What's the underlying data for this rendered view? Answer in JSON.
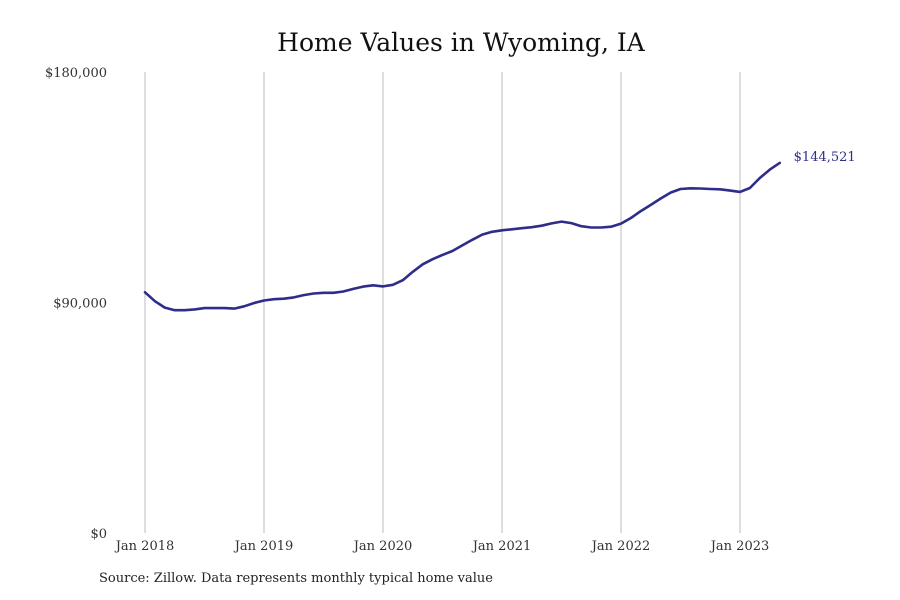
{
  "chart_data": {
    "type": "line",
    "title": "Home Values in Wyoming, IA",
    "xlabel": "",
    "ylabel": "",
    "ylim": [
      0,
      180000
    ],
    "y_ticks": [
      {
        "value": 0,
        "label": "$0"
      },
      {
        "value": 90000,
        "label": "$90,000"
      },
      {
        "value": 180000,
        "label": "$180,000"
      }
    ],
    "x_ticks": [
      "Jan 2018",
      "Jan 2019",
      "Jan 2020",
      "Jan 2021",
      "Jan 2022",
      "Jan 2023"
    ],
    "grid": "vertical",
    "line_color": "#2e2d8a",
    "end_label": "$144,521",
    "series": [
      {
        "x": [
          "2018-01",
          "2018-02",
          "2018-03",
          "2018-04",
          "2018-05",
          "2018-06",
          "2018-07",
          "2018-08",
          "2018-09",
          "2018-10",
          "2018-11",
          "2018-12",
          "2019-01",
          "2019-02",
          "2019-03",
          "2019-04",
          "2019-05",
          "2019-06",
          "2019-07",
          "2019-08",
          "2019-09",
          "2019-10",
          "2019-11",
          "2019-12",
          "2020-01",
          "2020-02",
          "2020-03",
          "2020-04",
          "2020-05",
          "2020-06",
          "2020-07",
          "2020-08",
          "2020-09",
          "2020-10",
          "2020-11",
          "2020-12",
          "2021-01",
          "2021-02",
          "2021-03",
          "2021-04",
          "2021-05",
          "2021-06",
          "2021-07",
          "2021-08",
          "2021-09",
          "2021-10",
          "2021-11",
          "2021-12",
          "2022-01",
          "2022-02",
          "2022-03",
          "2022-04",
          "2022-05",
          "2022-06",
          "2022-07",
          "2022-08",
          "2022-09",
          "2022-10",
          "2022-11",
          "2022-12",
          "2023-01",
          "2023-02",
          "2023-03",
          "2023-04",
          "2023-05"
        ],
        "values": [
          94000,
          90500,
          88000,
          87000,
          87000,
          87300,
          87800,
          87800,
          87800,
          87600,
          88500,
          89800,
          90800,
          91300,
          91500,
          92000,
          92900,
          93500,
          93800,
          93800,
          94300,
          95300,
          96200,
          96700,
          96300,
          96900,
          98700,
          102000,
          104900,
          106900,
          108600,
          110100,
          112300,
          114500,
          116500,
          117600,
          118200,
          118600,
          119000,
          119400,
          120000,
          120900,
          121600,
          121000,
          119800,
          119300,
          119300,
          119600,
          120800,
          123000,
          125700,
          128100,
          130600,
          132900,
          134300,
          134600,
          134500,
          134300,
          134200,
          133700,
          133200,
          134700,
          138600,
          141900,
          144521
        ]
      }
    ]
  },
  "source_text": "Source: Zillow. Data represents monthly typical home value"
}
